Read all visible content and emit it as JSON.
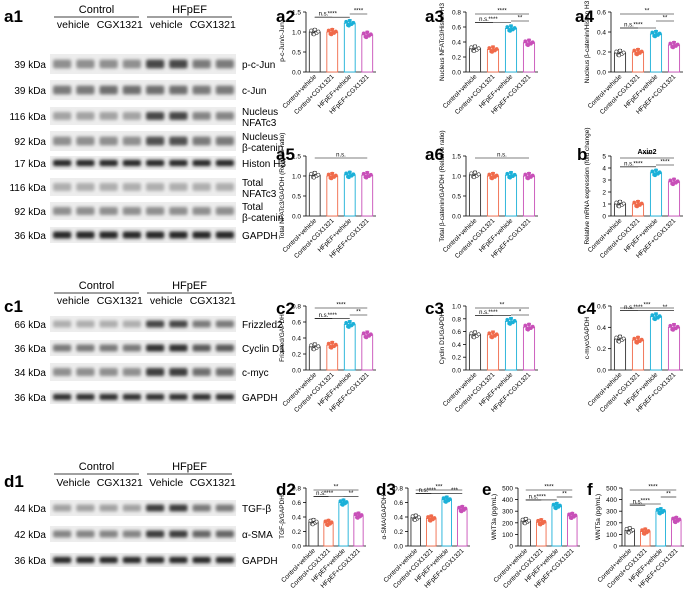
{
  "panel_labels": {
    "a1": "a1",
    "c1": "c1",
    "d1": "d1"
  },
  "blots": {
    "a1": {
      "groups": [
        "Control",
        "HFpEF"
      ],
      "lanes": [
        "vehicle",
        "CGX1321",
        "vehicle",
        "CGX1321"
      ],
      "rows": [
        {
          "kda": "39 kDa",
          "name": "p-c-Jun"
        },
        {
          "kda": "39 kDa",
          "name": "c-Jun"
        },
        {
          "kda": "116 kDa",
          "name": "Nucleus\nNFATc3"
        },
        {
          "kda": "92 kDa",
          "name": "Nucleus\nβ-catenin"
        },
        {
          "kda": "17 kDa",
          "name": "Histon H3"
        },
        {
          "kda": "116 kDa",
          "name": "Total\nNFATc3"
        },
        {
          "kda": "92 kDa",
          "name": "Total\nβ-catenin"
        },
        {
          "kda": "36 kDa",
          "name": "GAPDH"
        }
      ]
    },
    "c1": {
      "groups": [
        "Control",
        "HFpEF"
      ],
      "lanes": [
        "vehicle",
        "CGX1321",
        "vehicle",
        "CGX1321"
      ],
      "rows": [
        {
          "kda": "66 kDa",
          "name": "Frizzled2"
        },
        {
          "kda": "36 kDa",
          "name": "Cyclin D1"
        },
        {
          "kda": "34 kDa",
          "name": "c-myc"
        },
        {
          "kda": "36 kDa",
          "name": "GAPDH"
        }
      ]
    },
    "d1": {
      "groups": [
        "Control",
        "HFpEF"
      ],
      "lanes": [
        "Vehicle",
        "CGX1321",
        "Vehicle",
        "CGX1321"
      ],
      "rows": [
        {
          "kda": "44 kDa",
          "name": "TGF-β"
        },
        {
          "kda": "42 kDa",
          "name": "α-SMA"
        },
        {
          "kda": "36 kDa",
          "name": "GAPDH"
        }
      ]
    }
  },
  "colors": {
    "group1": "#333333",
    "group2": "#f06a4a",
    "group3": "#1bb0d8",
    "group4": "#c84fb8"
  },
  "chart_data": [
    {
      "id": "a2",
      "type": "bar",
      "categories": [
        "Control+vehicle",
        "Control+CGX1321",
        "HFpEF+vehicle",
        "HFpEF+CGX1321"
      ],
      "values": [
        1.0,
        1.0,
        1.22,
        0.93
      ],
      "ylabel": "p-c-Jun/c-Jun",
      "ylim": [
        0,
        1.5
      ],
      "yticks": [
        "0.0",
        "0.5",
        "1.0",
        "1.5"
      ],
      "sig": [
        {
          "from": 0,
          "to": 1,
          "label": "n.s."
        },
        {
          "from": 0,
          "to": 2,
          "label": "****"
        },
        {
          "from": 2,
          "to": 3,
          "label": "****"
        }
      ]
    },
    {
      "id": "a3",
      "type": "bar",
      "categories": [
        "Control+vehicle",
        "Control+CGX1321",
        "HFpEF+vehicle",
        "HFpEF+CGX1321"
      ],
      "values": [
        0.31,
        0.3,
        0.58,
        0.39
      ],
      "ylabel": "Nucleus NFATc3/Histon H3",
      "ylim": [
        0,
        0.8
      ],
      "yticks": [
        "0.0",
        "0.2",
        "0.4",
        "0.6",
        "0.8"
      ],
      "sig": [
        {
          "from": 0,
          "to": 1,
          "label": "n.s."
        },
        {
          "from": 0,
          "to": 2,
          "label": "****"
        },
        {
          "from": 2,
          "to": 3,
          "label": "**"
        },
        {
          "from": 0,
          "to": 3,
          "label": "****"
        }
      ]
    },
    {
      "id": "a4",
      "type": "bar",
      "categories": [
        "Control+vehicle",
        "Control+CGX1321",
        "HFpEF+vehicle",
        "HFpEF+CGX1321"
      ],
      "values": [
        0.19,
        0.2,
        0.38,
        0.27
      ],
      "ylabel": "Nucleus β-catenin/Histon H3",
      "ylim": [
        0,
        0.6
      ],
      "yticks": [
        "0.0",
        "0.2",
        "0.4",
        "0.6"
      ],
      "sig": [
        {
          "from": 0,
          "to": 1,
          "label": "n.s."
        },
        {
          "from": 0,
          "to": 2,
          "label": "****"
        },
        {
          "from": 2,
          "to": 3,
          "label": "**"
        },
        {
          "from": 0,
          "to": 3,
          "label": "**"
        }
      ]
    },
    {
      "id": "a5",
      "type": "bar",
      "categories": [
        "Control+vehicle",
        "Control+CGX1321",
        "HFpEF+vehicle",
        "HFpEF+CGX1321"
      ],
      "values": [
        1.02,
        1.0,
        1.03,
        1.02
      ],
      "ylabel": "Total NFATc3/GAPDH (Relative ratio)",
      "ylim": [
        0,
        1.5
      ],
      "yticks": [
        "0.0",
        "0.5",
        "1.0",
        "1.5"
      ],
      "sig": [
        {
          "from": 0,
          "to": 3,
          "label": "n.s."
        }
      ]
    },
    {
      "id": "a6",
      "type": "bar",
      "categories": [
        "Control+vehicle",
        "Control+CGX1321",
        "HFpEF+vehicle",
        "HFpEF+CGX1321"
      ],
      "values": [
        1.03,
        1.0,
        1.02,
        1.0
      ],
      "ylabel": "Total β-catenin/GAPDH (Relative ratio)",
      "ylim": [
        0,
        1.5
      ],
      "yticks": [
        "0.0",
        "0.5",
        "1.0",
        "1.5"
      ],
      "sig": [
        {
          "from": 0,
          "to": 3,
          "label": "n.s."
        }
      ]
    },
    {
      "id": "b",
      "type": "bar",
      "title": "Axin2",
      "categories": [
        "Control+vehicle",
        "Control+CGX1321",
        "HFpEF+vehicle",
        "HFpEF+CGX1321"
      ],
      "values": [
        1.0,
        1.0,
        3.6,
        2.85
      ],
      "ylabel": "Relative mRNA expression (fold change)",
      "ylim": [
        0,
        5
      ],
      "yticks": [
        "0",
        "1",
        "2",
        "3",
        "4",
        "5"
      ],
      "sig": [
        {
          "from": 0,
          "to": 1,
          "label": "n.s."
        },
        {
          "from": 0,
          "to": 2,
          "label": "****"
        },
        {
          "from": 2,
          "to": 3,
          "label": "****"
        },
        {
          "from": 0,
          "to": 3,
          "label": "****"
        }
      ]
    },
    {
      "id": "c2",
      "type": "bar",
      "categories": [
        "Control+vehicle",
        "Control+CGX1321",
        "HFpEF+vehicle",
        "HFpEF+CGX1321"
      ],
      "values": [
        0.29,
        0.31,
        0.57,
        0.44
      ],
      "ylabel": "Frizzled/GAPDH",
      "ylim": [
        0,
        0.8
      ],
      "yticks": [
        "0.0",
        "0.2",
        "0.4",
        "0.6",
        "0.8"
      ],
      "sig": [
        {
          "from": 0,
          "to": 1,
          "label": "n.s."
        },
        {
          "from": 0,
          "to": 2,
          "label": "****"
        },
        {
          "from": 2,
          "to": 3,
          "label": "**"
        },
        {
          "from": 0,
          "to": 3,
          "label": "****"
        }
      ]
    },
    {
      "id": "c3",
      "type": "bar",
      "categories": [
        "Control+vehicle",
        "Control+CGX1321",
        "HFpEF+vehicle",
        "HFpEF+CGX1321"
      ],
      "values": [
        0.55,
        0.55,
        0.76,
        0.67
      ],
      "ylabel": "Cyclin D1/GAPDH",
      "ylim": [
        0,
        1.0
      ],
      "yticks": [
        "0.0",
        "0.2",
        "0.4",
        "0.6",
        "0.8",
        "1.0"
      ],
      "sig": [
        {
          "from": 0,
          "to": 1,
          "label": "n.s."
        },
        {
          "from": 0,
          "to": 2,
          "label": "****"
        },
        {
          "from": 2,
          "to": 3,
          "label": "*"
        },
        {
          "from": 0,
          "to": 3,
          "label": "**"
        }
      ]
    },
    {
      "id": "c4",
      "type": "bar",
      "categories": [
        "Control+vehicle",
        "Control+CGX1321",
        "HFpEF+vehicle",
        "HFpEF+CGX1321"
      ],
      "values": [
        0.29,
        0.28,
        0.5,
        0.4
      ],
      "ylabel": "c-myc/GAPDH",
      "ylim": [
        0,
        0.6
      ],
      "yticks": [
        "0.0",
        "0.2",
        "0.4",
        "0.6"
      ],
      "sig": [
        {
          "from": 0,
          "to": 1,
          "label": "n.s."
        },
        {
          "from": 0,
          "to": 2,
          "label": "****"
        },
        {
          "from": 2,
          "to": 3,
          "label": "**"
        },
        {
          "from": 0,
          "to": 3,
          "label": "***"
        }
      ]
    },
    {
      "id": "d2",
      "type": "bar",
      "categories": [
        "Control+vehicle",
        "Control+CGX1321",
        "HFpEF+vehicle",
        "HFpEF+CGX1321"
      ],
      "values": [
        0.33,
        0.32,
        0.6,
        0.42
      ],
      "ylabel": "TGF-β/GAPDH",
      "ylim": [
        0,
        0.8
      ],
      "yticks": [
        "0.0",
        "0.2",
        "0.4",
        "0.6",
        "0.8"
      ],
      "sig": [
        {
          "from": 0,
          "to": 1,
          "label": "n.s."
        },
        {
          "from": 0,
          "to": 2,
          "label": "****"
        },
        {
          "from": 2,
          "to": 3,
          "label": "**"
        },
        {
          "from": 0,
          "to": 3,
          "label": "**"
        }
      ]
    },
    {
      "id": "d3",
      "type": "bar",
      "categories": [
        "Control+vehicle",
        "Control+CGX1321",
        "HFpEF+vehicle",
        "HFpEF+CGX1321"
      ],
      "values": [
        0.39,
        0.38,
        0.64,
        0.51
      ],
      "ylabel": "α-SMA/GAPDH",
      "ylim": [
        0,
        0.8
      ],
      "yticks": [
        "0.0",
        "0.2",
        "0.4",
        "0.6",
        "0.8"
      ],
      "sig": [
        {
          "from": 0,
          "to": 1,
          "label": "n.s."
        },
        {
          "from": 0,
          "to": 2,
          "label": "****"
        },
        {
          "from": 2,
          "to": 3,
          "label": "***"
        },
        {
          "from": 0,
          "to": 3,
          "label": "***"
        }
      ]
    },
    {
      "id": "e",
      "type": "bar",
      "categories": [
        "Control+vehicle",
        "Control+CGX1321",
        "HFpEF+vehicle",
        "HFpEF+CGX1321"
      ],
      "values": [
        215,
        205,
        345,
        260
      ],
      "ylabel": "WNT3a (pg/mL)",
      "ylim": [
        0,
        500
      ],
      "yticks": [
        "0",
        "100",
        "200",
        "300",
        "400",
        "500"
      ],
      "sig": [
        {
          "from": 0,
          "to": 1,
          "label": "n.s."
        },
        {
          "from": 0,
          "to": 2,
          "label": "****"
        },
        {
          "from": 2,
          "to": 3,
          "label": "**"
        },
        {
          "from": 0,
          "to": 3,
          "label": "****"
        }
      ]
    },
    {
      "id": "f",
      "type": "bar",
      "categories": [
        "Control+vehicle",
        "Control+CGX1321",
        "HFpEF+vehicle",
        "HFpEF+CGX1321"
      ],
      "values": [
        135,
        125,
        300,
        225
      ],
      "ylabel": "WNT5a (pg/mL)",
      "ylim": [
        0,
        500
      ],
      "yticks": [
        "0",
        "100",
        "200",
        "300",
        "400",
        "500"
      ],
      "sig": [
        {
          "from": 0,
          "to": 1,
          "label": "n.s."
        },
        {
          "from": 0,
          "to": 2,
          "label": "****"
        },
        {
          "from": 2,
          "to": 3,
          "label": "**"
        },
        {
          "from": 0,
          "to": 3,
          "label": "****"
        }
      ]
    }
  ]
}
